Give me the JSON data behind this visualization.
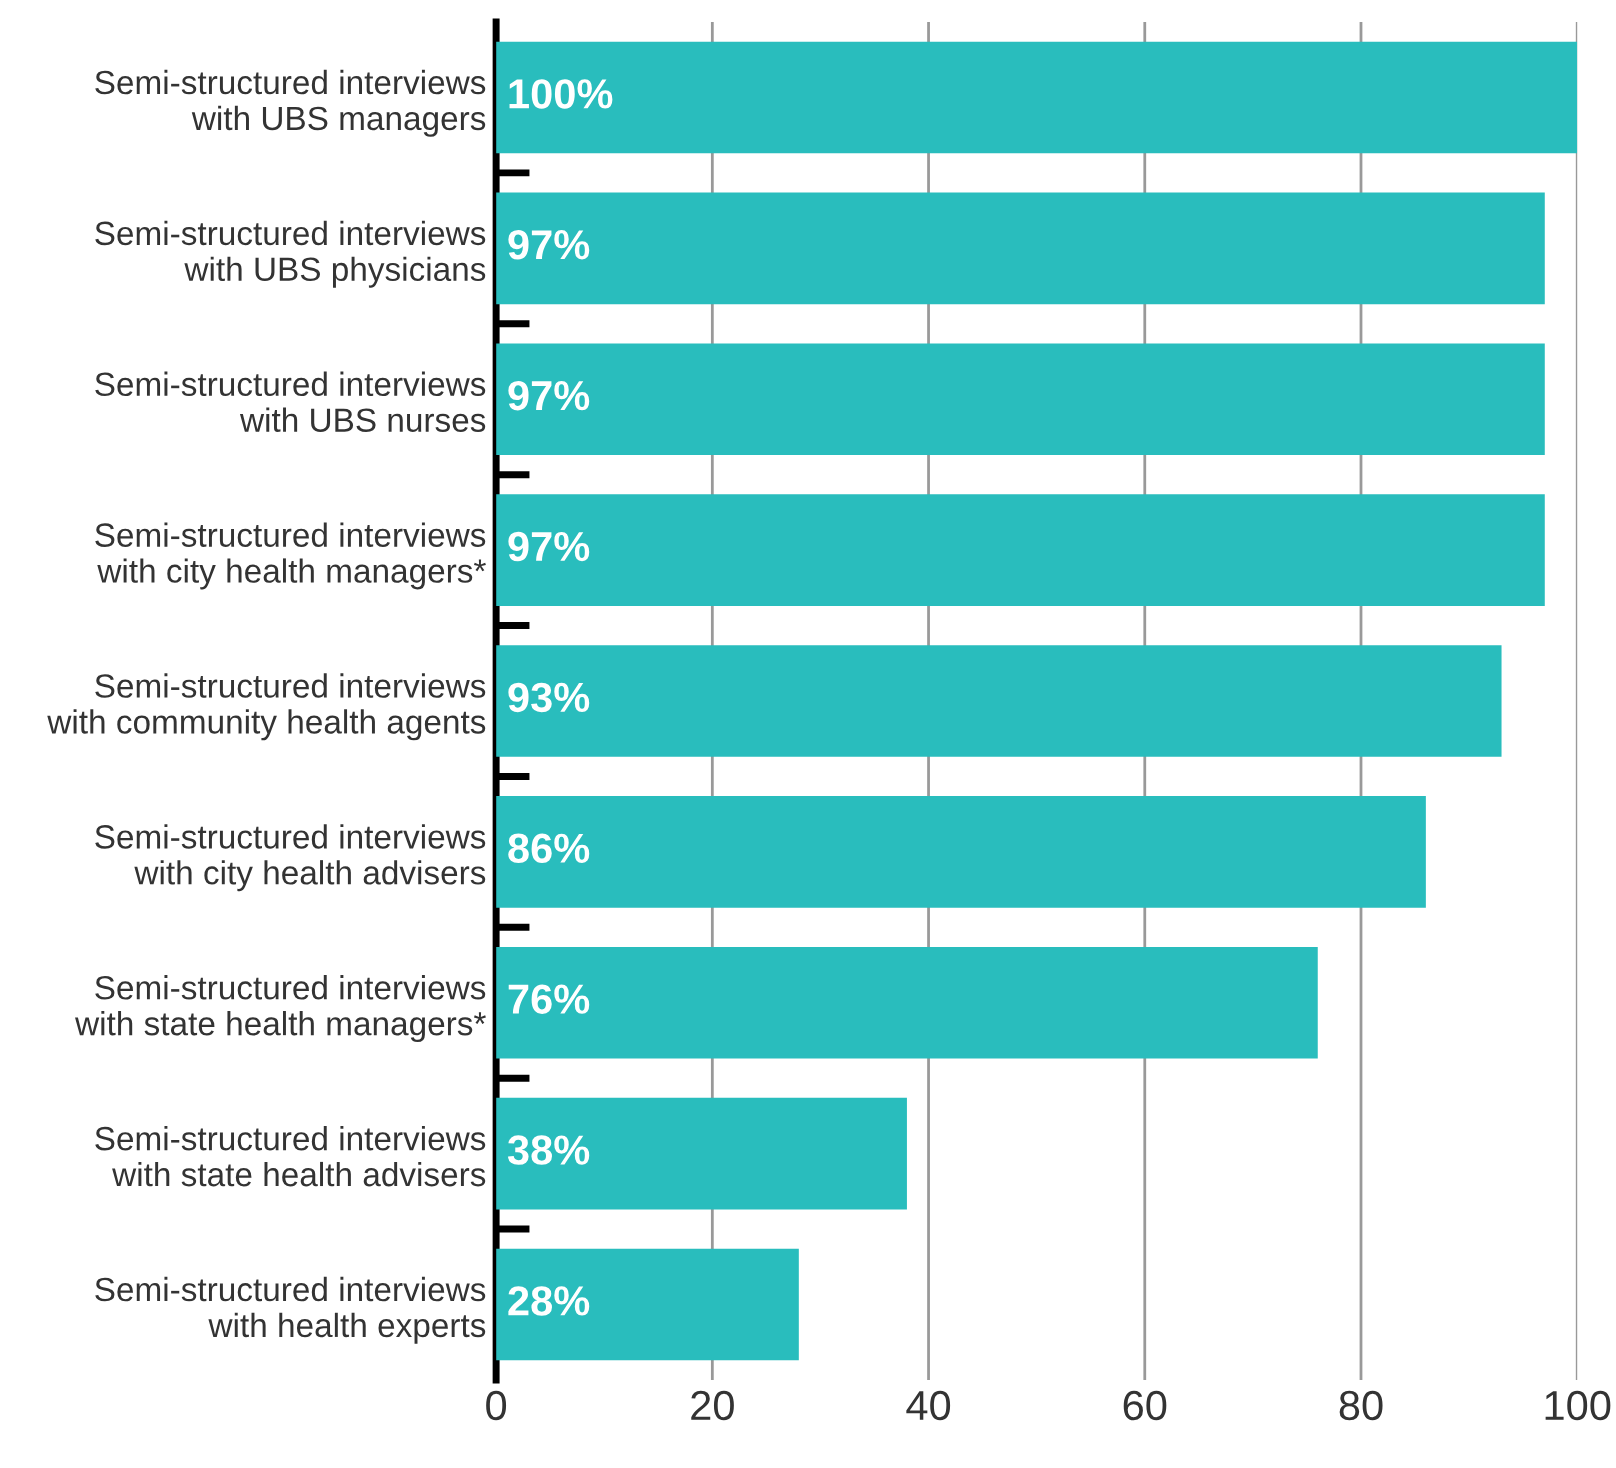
{
  "chart_data": {
    "type": "bar",
    "orientation": "horizontal",
    "categories": [
      "Semi-structured interviews\nwith UBS managers",
      "Semi-structured interviews\nwith UBS physicians",
      "Semi-structured interviews\nwith UBS nurses",
      "Semi-structured interviews\nwith city health managers*",
      "Semi-structured interviews\nwith community health agents",
      "Semi-structured interviews\nwith city health advisers",
      "Semi-structured interviews\nwith state health managers*",
      "Semi-structured interviews\nwith state health advisers",
      "Semi-structured interviews\nwith health experts"
    ],
    "values": [
      100,
      97,
      97,
      97,
      93,
      86,
      76,
      38,
      28
    ],
    "value_labels": [
      "100%",
      "97%",
      "97%",
      "97%",
      "93%",
      "86%",
      "76%",
      "38%",
      "28%"
    ],
    "color": "#29bdbd",
    "xlim": [
      0,
      100
    ],
    "xticks": [
      0,
      20,
      40,
      60,
      80,
      100
    ],
    "grid": "x"
  }
}
